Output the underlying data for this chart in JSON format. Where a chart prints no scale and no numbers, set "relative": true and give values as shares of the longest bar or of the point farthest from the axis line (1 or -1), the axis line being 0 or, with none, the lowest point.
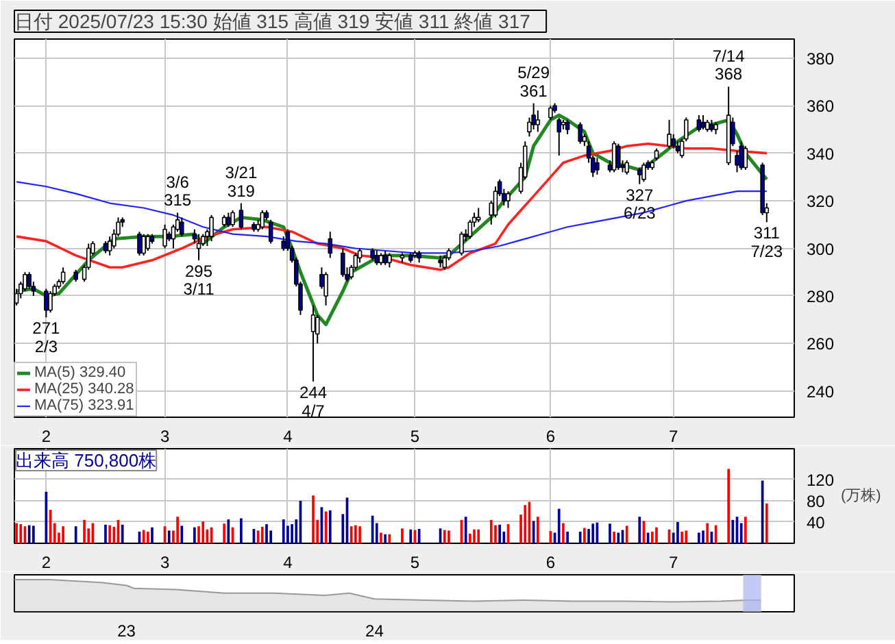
{
  "chart_data": [
    {
      "type": "candlestick",
      "title": "日付 2025/07/23 15:30 始値 315  高値 319  安値 311  終値 317",
      "x": [
        "2025-01-27",
        "2025-01-28",
        "2025-01-29",
        "2025-01-30",
        "2025-01-31",
        "2025-02-03",
        "2025-02-04",
        "2025-02-05",
        "2025-02-06",
        "2025-02-07",
        "2025-02-10",
        "2025-02-12",
        "2025-02-13",
        "2025-02-14",
        "2025-02-17",
        "2025-02-18",
        "2025-02-19",
        "2025-02-20",
        "2025-02-21",
        "2025-02-25",
        "2025-02-26",
        "2025-02-27",
        "2025-02-28",
        "2025-03-03",
        "2025-03-04",
        "2025-03-05",
        "2025-03-06",
        "2025-03-07",
        "2025-03-10",
        "2025-03-11",
        "2025-03-12",
        "2025-03-13",
        "2025-03-14",
        "2025-03-17",
        "2025-03-18",
        "2025-03-19",
        "2025-03-21",
        "2025-03-24",
        "2025-03-25",
        "2025-03-26",
        "2025-03-27",
        "2025-03-28",
        "2025-03-31",
        "2025-04-01",
        "2025-04-02",
        "2025-04-03",
        "2025-04-04",
        "2025-04-07",
        "2025-04-08",
        "2025-04-09",
        "2025-04-10",
        "2025-04-11",
        "2025-04-14",
        "2025-04-15",
        "2025-04-16",
        "2025-04-17",
        "2025-04-18",
        "2025-04-21",
        "2025-04-22",
        "2025-04-23",
        "2025-04-24",
        "2025-04-25",
        "2025-04-28",
        "2025-04-30",
        "2025-05-01",
        "2025-05-02",
        "2025-05-07",
        "2025-05-08",
        "2025-05-09",
        "2025-05-12",
        "2025-05-13",
        "2025-05-14",
        "2025-05-15",
        "2025-05-16",
        "2025-05-19",
        "2025-05-20",
        "2025-05-21",
        "2025-05-22",
        "2025-05-23",
        "2025-05-26",
        "2025-05-27",
        "2025-05-28",
        "2025-05-29",
        "2025-05-30",
        "2025-06-02",
        "2025-06-03",
        "2025-06-04",
        "2025-06-05",
        "2025-06-06",
        "2025-06-09",
        "2025-06-10",
        "2025-06-11",
        "2025-06-12",
        "2025-06-13",
        "2025-06-16",
        "2025-06-17",
        "2025-06-18",
        "2025-06-19",
        "2025-06-20",
        "2025-06-23",
        "2025-06-24",
        "2025-06-25",
        "2025-06-26",
        "2025-06-27",
        "2025-06-30",
        "2025-07-01",
        "2025-07-02",
        "2025-07-03",
        "2025-07-04",
        "2025-07-07",
        "2025-07-08",
        "2025-07-09",
        "2025-07-10",
        "2025-07-11",
        "2025-07-14",
        "2025-07-15",
        "2025-07-16",
        "2025-07-17",
        "2025-07-18",
        "2025-07-22",
        "2025-07-23"
      ],
      "ohlc": [
        [
          277,
          283,
          276,
          281
        ],
        [
          281,
          286,
          279,
          285
        ],
        [
          283,
          290,
          282,
          289
        ],
        [
          289,
          290,
          283,
          284
        ],
        [
          284,
          286,
          280,
          282
        ],
        [
          282,
          283,
          271,
          274
        ],
        [
          274,
          282,
          273,
          281
        ],
        [
          281,
          285,
          280,
          284
        ],
        [
          284,
          287,
          283,
          286
        ],
        [
          286,
          292,
          285,
          290
        ],
        [
          290,
          291,
          286,
          287
        ],
        [
          287,
          293,
          286,
          292
        ],
        [
          292,
          302,
          291,
          300
        ],
        [
          298,
          303,
          297,
          302
        ],
        [
          302,
          303,
          298,
          299
        ],
        [
          299,
          305,
          297,
          303
        ],
        [
          301,
          308,
          300,
          306
        ],
        [
          306,
          313,
          305,
          311
        ],
        [
          312,
          313,
          309,
          311
        ],
        [
          306,
          307,
          297,
          298
        ],
        [
          298,
          306,
          297,
          305
        ],
        [
          300,
          306,
          299,
          305
        ],
        [
          305,
          306,
          302,
          303
        ],
        [
          301,
          310,
          300,
          308
        ],
        [
          306,
          307,
          303,
          304
        ],
        [
          304,
          310,
          300,
          309
        ],
        [
          308,
          315,
          307,
          312
        ],
        [
          311,
          313,
          305,
          306
        ],
        [
          306,
          308,
          302,
          304
        ],
        [
          300,
          306,
          295,
          302
        ],
        [
          302,
          306,
          301,
          305
        ],
        [
          305,
          308,
          301,
          307
        ],
        [
          305,
          314,
          303,
          313
        ],
        [
          310,
          314,
          309,
          313
        ],
        [
          313,
          315,
          309,
          310
        ],
        [
          310,
          316,
          309,
          315
        ],
        [
          316,
          319,
          308,
          309
        ],
        [
          310,
          311,
          307,
          308
        ],
        [
          308,
          312,
          307,
          310
        ],
        [
          309,
          316,
          308,
          315
        ],
        [
          315,
          316,
          312,
          313
        ],
        [
          311,
          312,
          302,
          303
        ],
        [
          303,
          305,
          299,
          300
        ],
        [
          307,
          308,
          299,
          300
        ],
        [
          300,
          301,
          294,
          295
        ],
        [
          295,
          296,
          284,
          285
        ],
        [
          285,
          286,
          272,
          274
        ],
        [
          265,
          276,
          244,
          272
        ],
        [
          264,
          272,
          260,
          271
        ],
        [
          289,
          292,
          283,
          284
        ],
        [
          280,
          290,
          276,
          289
        ],
        [
          304,
          307,
          296,
          298
        ],
        [
          298,
          300,
          288,
          289
        ],
        [
          289,
          292,
          286,
          287
        ],
        [
          288,
          293,
          287,
          292
        ],
        [
          292,
          298,
          291,
          297
        ],
        [
          296,
          300,
          294,
          299
        ],
        [
          299,
          300,
          295,
          296
        ],
        [
          297,
          299,
          293,
          294
        ],
        [
          294,
          298,
          293,
          297
        ],
        [
          297,
          299,
          293,
          294
        ],
        [
          294,
          298,
          292,
          297
        ],
        [
          296,
          298,
          294,
          297
        ],
        [
          297,
          298,
          294,
          295
        ],
        [
          297,
          299,
          296,
          298
        ],
        [
          298,
          299,
          294,
          296
        ],
        [
          295,
          297,
          292,
          294
        ],
        [
          292,
          297,
          291,
          296
        ],
        [
          296,
          300,
          295,
          299
        ],
        [
          298,
          307,
          297,
          306
        ],
        [
          306,
          308,
          303,
          305
        ],
        [
          305,
          312,
          304,
          311
        ],
        [
          311,
          315,
          309,
          313
        ],
        [
          312,
          317,
          311,
          313
        ],
        [
          314,
          320,
          310,
          319
        ],
        [
          314,
          326,
          313,
          324
        ],
        [
          328,
          329,
          322,
          323
        ],
        [
          323,
          325,
          318,
          320
        ],
        [
          320,
          324,
          317,
          323
        ],
        [
          324,
          336,
          323,
          334
        ],
        [
          330,
          345,
          329,
          343
        ],
        [
          349,
          355,
          347,
          353
        ],
        [
          356,
          361,
          350,
          352
        ],
        [
          352,
          358,
          349,
          354
        ],
        [
          355,
          360,
          354,
          359
        ],
        [
          360,
          361,
          357,
          358
        ],
        [
          354,
          355,
          339,
          349
        ],
        [
          352,
          354,
          350,
          353
        ],
        [
          353,
          354,
          348,
          350
        ],
        [
          352,
          353,
          344,
          345
        ],
        [
          345,
          348,
          343,
          347
        ],
        [
          343,
          345,
          336,
          338
        ],
        [
          338,
          339,
          330,
          332
        ],
        [
          336,
          338,
          331,
          333
        ],
        [
          335,
          337,
          332,
          333
        ],
        [
          333,
          345,
          332,
          344
        ],
        [
          343,
          344,
          333,
          334
        ],
        [
          335,
          337,
          332,
          334
        ],
        [
          332,
          337,
          331,
          336
        ],
        [
          333,
          334,
          327,
          331
        ],
        [
          329,
          336,
          328,
          335
        ],
        [
          336,
          337,
          333,
          334
        ],
        [
          334,
          337,
          333,
          336
        ],
        [
          338,
          342,
          337,
          341
        ],
        [
          343,
          354,
          342,
          348
        ],
        [
          346,
          348,
          342,
          343
        ],
        [
          343,
          345,
          340,
          341
        ],
        [
          339,
          346,
          338,
          345
        ],
        [
          346,
          355,
          345,
          354
        ],
        [
          354,
          356,
          349,
          350
        ],
        [
          353,
          356,
          350,
          351
        ],
        [
          350,
          354,
          349,
          353
        ],
        [
          352,
          354,
          349,
          350
        ],
        [
          350,
          353,
          348,
          352
        ],
        [
          336,
          368,
          335,
          356
        ],
        [
          353,
          355,
          343,
          344
        ],
        [
          339,
          341,
          332,
          335
        ],
        [
          343,
          345,
          333,
          334
        ],
        [
          334,
          343,
          333,
          342
        ],
        [
          335,
          336,
          314,
          315
        ],
        [
          315,
          319,
          311,
          317
        ]
      ],
      "colors": [
        "#ffffff",
        "#ffffff",
        "#ffffff",
        "#000099",
        "#000099",
        "#000099",
        "#ffffff",
        "#ffffff",
        "#ffffff",
        "#ffffff",
        "#000099",
        "#ffffff",
        "#ffffff",
        "#ffffff",
        "#000099",
        "#ffffff",
        "#ffffff",
        "#ffffff",
        "#000099",
        "#000099",
        "#ffffff",
        "#ffffff",
        "#000099",
        "#ffffff",
        "#000099",
        "#ffffff",
        "#ffffff",
        "#000099",
        "#000099",
        "#ffffff",
        "#ffffff",
        "#ffffff",
        "#ffffff",
        "#ffffff",
        "#000099",
        "#ffffff",
        "#000099",
        "#000099",
        "#ffffff",
        "#ffffff",
        "#000099",
        "#000099",
        "#000099",
        "#000099",
        "#000099",
        "#000099",
        "#000099",
        "#ffffff",
        "#ffffff",
        "#000099",
        "#ffffff",
        "#000099",
        "#000099",
        "#000099",
        "#ffffff",
        "#ffffff",
        "#ffffff",
        "#000099",
        "#000099",
        "#ffffff",
        "#000099",
        "#ffffff",
        "#ffffff",
        "#000099",
        "#ffffff",
        "#000099",
        "#000099",
        "#ffffff",
        "#ffffff",
        "#ffffff",
        "#000099",
        "#ffffff",
        "#ffffff",
        "#ffffff",
        "#ffffff",
        "#ffffff",
        "#000099",
        "#000099",
        "#ffffff",
        "#ffffff",
        "#ffffff",
        "#ffffff",
        "#000099",
        "#ffffff",
        "#ffffff",
        "#000099",
        "#000099",
        "#ffffff",
        "#000099",
        "#000099",
        "#ffffff",
        "#000099",
        "#000099",
        "#000099",
        "#000099",
        "#ffffff",
        "#000099",
        "#000099",
        "#ffffff",
        "#000099",
        "#ffffff",
        "#000099",
        "#ffffff",
        "#ffffff",
        "#ffffff",
        "#000099",
        "#000099",
        "#ffffff",
        "#ffffff",
        "#000099",
        "#000099",
        "#ffffff",
        "#000099",
        "#ffffff",
        "#ffffff",
        "#000099",
        "#000099",
        "#000099",
        "#ffffff",
        "#000099",
        "#ffffff"
      ],
      "series": [
        {
          "type": "line",
          "name": "MA(5) 329.40",
          "color": "#228822",
          "x": [
            "2025-01-27",
            "2025-01-31",
            "2025-02-03",
            "2025-02-06",
            "2025-02-13",
            "2025-02-19",
            "2025-02-26",
            "2025-03-04",
            "2025-03-10",
            "2025-03-12",
            "2025-03-17",
            "2025-03-21",
            "2025-03-26",
            "2025-03-31",
            "2025-04-02",
            "2025-04-04",
            "2025-04-08",
            "2025-04-10",
            "2025-04-14",
            "2025-04-16",
            "2025-04-21",
            "2025-04-24",
            "2025-04-30",
            "2025-05-07",
            "2025-05-09",
            "2025-05-14",
            "2025-05-19",
            "2025-05-22",
            "2025-05-27",
            "2025-05-29",
            "2025-06-02",
            "2025-06-04",
            "2025-06-06",
            "2025-06-10",
            "2025-06-12",
            "2025-06-16",
            "2025-06-19",
            "2025-06-23",
            "2025-06-25",
            "2025-06-30",
            "2025-07-02",
            "2025-07-07",
            "2025-07-10",
            "2025-07-14",
            "2025-07-16",
            "2025-07-18",
            "2025-07-23"
          ],
          "values": [
            282,
            283,
            280,
            281,
            295,
            304,
            305,
            305,
            306,
            302,
            309,
            313,
            312,
            309,
            300,
            290,
            272,
            268,
            282,
            290,
            295,
            297,
            297,
            296,
            297,
            305,
            313,
            320,
            330,
            343,
            354,
            356,
            354,
            349,
            340,
            336,
            335,
            333,
            335,
            342,
            345,
            351,
            352,
            354,
            348,
            340,
            329
          ]
        },
        {
          "type": "line",
          "name": "MA(25) 340.28",
          "color": "#ff2222",
          "x": [
            "2025-01-27",
            "2025-02-03",
            "2025-02-10",
            "2025-02-18",
            "2025-02-21",
            "2025-02-28",
            "2025-03-07",
            "2025-03-13",
            "2025-03-19",
            "2025-03-27",
            "2025-04-02",
            "2025-04-08",
            "2025-04-14",
            "2025-04-18",
            "2025-04-24",
            "2025-04-30",
            "2025-05-07",
            "2025-05-09",
            "2025-05-14",
            "2025-05-20",
            "2025-05-23",
            "2025-05-28",
            "2025-06-02",
            "2025-06-05",
            "2025-06-10",
            "2025-06-16",
            "2025-06-20",
            "2025-06-25",
            "2025-06-30",
            "2025-07-04",
            "2025-07-10",
            "2025-07-16",
            "2025-07-23"
          ],
          "values": [
            305,
            303,
            297,
            292,
            292,
            295,
            300,
            305,
            308,
            309,
            307,
            302,
            300,
            297,
            296,
            293,
            291,
            292,
            298,
            302,
            310,
            320,
            330,
            336,
            339,
            341,
            343,
            344,
            343,
            342,
            342,
            341,
            340
          ]
        },
        {
          "type": "line",
          "name": "MA(75) 323.91",
          "color": "#2222ff",
          "x": [
            "2025-01-27",
            "2025-02-03",
            "2025-02-10",
            "2025-02-18",
            "2025-02-26",
            "2025-03-05",
            "2025-03-12",
            "2025-03-19",
            "2025-03-27",
            "2025-04-03",
            "2025-04-10",
            "2025-04-17",
            "2025-04-24",
            "2025-05-01",
            "2025-05-09",
            "2025-05-15",
            "2025-05-21",
            "2025-05-27",
            "2025-06-02",
            "2025-06-06",
            "2025-06-12",
            "2025-06-18",
            "2025-06-24",
            "2025-06-30",
            "2025-07-04",
            "2025-07-10",
            "2025-07-16",
            "2025-07-23"
          ],
          "values": [
            328,
            326,
            323,
            319,
            317,
            314,
            309,
            306,
            305,
            303,
            302,
            300,
            299,
            298,
            298,
            299,
            301,
            304,
            307,
            309,
            311,
            313,
            315,
            318,
            320,
            322,
            324,
            324
          ]
        }
      ],
      "annotations": [
        {
          "text": "271\n2/3",
          "x": "2025-02-03",
          "y": 271
        },
        {
          "text": "3/6\n315",
          "x": "2025-03-06",
          "y": 315
        },
        {
          "text": "295\n3/11",
          "x": "2025-03-11",
          "y": 295
        },
        {
          "text": "3/21\n319",
          "x": "2025-03-21",
          "y": 319
        },
        {
          "text": "244\n4/7",
          "x": "2025-04-07",
          "y": 244
        },
        {
          "text": "5/29\n361",
          "x": "2025-05-29",
          "y": 361
        },
        {
          "text": "327\n6/23",
          "x": "2025-06-23",
          "y": 327
        },
        {
          "text": "7/14\n368",
          "x": "2025-07-14",
          "y": 368
        },
        {
          "text": "311\n7/23",
          "x": "2025-07-23",
          "y": 311
        }
      ],
      "xlim": [
        "2025-01-27",
        "2025-07-29"
      ],
      "ylim": [
        229,
        388
      ],
      "xticks": [
        {
          "value": "2025-02-03",
          "label": "2"
        },
        {
          "value": "2025-03-03",
          "label": "3"
        },
        {
          "value": "2025-04-01",
          "label": "4"
        },
        {
          "value": "2025-05-01",
          "label": "5"
        },
        {
          "value": "2025-06-02",
          "label": "6"
        },
        {
          "value": "2025-07-01",
          "label": "7"
        }
      ],
      "yticks": [
        240,
        260,
        280,
        300,
        320,
        340,
        360,
        380
      ],
      "grid": true,
      "legend": "bottom left"
    },
    {
      "type": "bar",
      "title": "出来高 750,800株",
      "ylabel": "(万株)",
      "x": [
        "2025-01-27",
        "2025-01-28",
        "2025-01-29",
        "2025-01-30",
        "2025-01-31",
        "2025-02-03",
        "2025-02-04",
        "2025-02-05",
        "2025-02-06",
        "2025-02-07",
        "2025-02-10",
        "2025-02-12",
        "2025-02-13",
        "2025-02-14",
        "2025-02-17",
        "2025-02-18",
        "2025-02-19",
        "2025-02-20",
        "2025-02-21",
        "2025-02-25",
        "2025-02-26",
        "2025-02-27",
        "2025-02-28",
        "2025-03-03",
        "2025-03-04",
        "2025-03-05",
        "2025-03-06",
        "2025-03-07",
        "2025-03-10",
        "2025-03-11",
        "2025-03-12",
        "2025-03-13",
        "2025-03-14",
        "2025-03-17",
        "2025-03-18",
        "2025-03-19",
        "2025-03-21",
        "2025-03-24",
        "2025-03-25",
        "2025-03-26",
        "2025-03-27",
        "2025-03-28",
        "2025-03-31",
        "2025-04-01",
        "2025-04-02",
        "2025-04-03",
        "2025-04-04",
        "2025-04-07",
        "2025-04-08",
        "2025-04-09",
        "2025-04-10",
        "2025-04-11",
        "2025-04-14",
        "2025-04-15",
        "2025-04-16",
        "2025-04-17",
        "2025-04-18",
        "2025-04-21",
        "2025-04-22",
        "2025-04-23",
        "2025-04-24",
        "2025-04-25",
        "2025-04-28",
        "2025-04-30",
        "2025-05-01",
        "2025-05-02",
        "2025-05-07",
        "2025-05-08",
        "2025-05-09",
        "2025-05-12",
        "2025-05-13",
        "2025-05-14",
        "2025-05-15",
        "2025-05-16",
        "2025-05-19",
        "2025-05-20",
        "2025-05-21",
        "2025-05-22",
        "2025-05-23",
        "2025-05-26",
        "2025-05-27",
        "2025-05-28",
        "2025-05-29",
        "2025-05-30",
        "2025-06-02",
        "2025-06-03",
        "2025-06-04",
        "2025-06-05",
        "2025-06-06",
        "2025-06-09",
        "2025-06-10",
        "2025-06-11",
        "2025-06-12",
        "2025-06-13",
        "2025-06-16",
        "2025-06-17",
        "2025-06-18",
        "2025-06-19",
        "2025-06-20",
        "2025-06-23",
        "2025-06-24",
        "2025-06-25",
        "2025-06-26",
        "2025-06-27",
        "2025-06-30",
        "2025-07-01",
        "2025-07-02",
        "2025-07-03",
        "2025-07-04",
        "2025-07-07",
        "2025-07-08",
        "2025-07-09",
        "2025-07-10",
        "2025-07-11",
        "2025-07-14",
        "2025-07-15",
        "2025-07-16",
        "2025-07-17",
        "2025-07-18",
        "2025-07-22",
        "2025-07-23"
      ],
      "values": [
        38,
        36,
        32,
        34,
        33,
        97,
        63,
        38,
        20,
        32,
        32,
        44,
        28,
        38,
        35,
        34,
        31,
        44,
        35,
        22,
        25,
        22,
        30,
        32,
        24,
        24,
        50,
        33,
        30,
        32,
        41,
        26,
        30,
        37,
        45,
        30,
        47,
        27,
        24,
        31,
        36,
        24,
        45,
        33,
        36,
        45,
        80,
        90,
        44,
        68,
        60,
        62,
        55,
        86,
        32,
        34,
        32,
        52,
        38,
        20,
        17,
        17,
        28,
        26,
        25,
        27,
        28,
        25,
        24,
        44,
        50,
        18,
        26,
        26,
        44,
        34,
        35,
        22,
        36,
        54,
        72,
        78,
        42,
        50,
        23,
        20,
        65,
        38,
        22,
        22,
        29,
        27,
        37,
        39,
        37,
        22,
        20,
        25,
        33,
        50,
        42,
        20,
        22,
        30,
        26,
        20,
        40,
        22,
        24,
        20,
        24,
        38,
        22,
        34,
        140,
        44,
        50,
        38,
        50,
        118,
        75
      ],
      "colors": [
        "#ff0000",
        "#ff0000",
        "#ff0000",
        "#000099",
        "#000099",
        "#000099",
        "#ff0000",
        "#ff0000",
        "#ff0000",
        "#ff0000",
        "#000099",
        "#ff0000",
        "#ff0000",
        "#ff0000",
        "#000099",
        "#ff0000",
        "#ff0000",
        "#ff0000",
        "#000099",
        "#000099",
        "#ff0000",
        "#ff0000",
        "#000099",
        "#ff0000",
        "#000099",
        "#ff0000",
        "#ff0000",
        "#000099",
        "#000099",
        "#ff0000",
        "#ff0000",
        "#ff0000",
        "#ff0000",
        "#ff0000",
        "#000099",
        "#ff0000",
        "#000099",
        "#000099",
        "#ff0000",
        "#ff0000",
        "#000099",
        "#000099",
        "#000099",
        "#000099",
        "#000099",
        "#000099",
        "#000099",
        "#ff0000",
        "#ff0000",
        "#000099",
        "#ff0000",
        "#000099",
        "#000099",
        "#000099",
        "#ff0000",
        "#ff0000",
        "#ff0000",
        "#000099",
        "#000099",
        "#ff0000",
        "#000099",
        "#ff0000",
        "#ff0000",
        "#000099",
        "#ff0000",
        "#000099",
        "#000099",
        "#ff0000",
        "#ff0000",
        "#ff0000",
        "#000099",
        "#ff0000",
        "#ff0000",
        "#ff0000",
        "#ff0000",
        "#ff0000",
        "#000099",
        "#000099",
        "#ff0000",
        "#ff0000",
        "#ff0000",
        "#ff0000",
        "#000099",
        "#ff0000",
        "#ff0000",
        "#000099",
        "#000099",
        "#ff0000",
        "#000099",
        "#000099",
        "#ff0000",
        "#000099",
        "#000099",
        "#000099",
        "#000099",
        "#ff0000",
        "#000099",
        "#000099",
        "#ff0000",
        "#000099",
        "#ff0000",
        "#000099",
        "#ff0000",
        "#ff0000",
        "#ff0000",
        "#000099",
        "#000099",
        "#ff0000",
        "#ff0000",
        "#000099",
        "#000099",
        "#ff0000",
        "#000099",
        "#ff0000",
        "#ff0000",
        "#000099",
        "#000099",
        "#000099",
        "#ff0000",
        "#000099",
        "#ff0000"
      ],
      "xlim": [
        "2025-01-27",
        "2025-07-29"
      ],
      "ylim": [
        0,
        178
      ],
      "xticks": [
        {
          "value": "2025-02-03",
          "label": "2"
        },
        {
          "value": "2025-03-03",
          "label": "3"
        },
        {
          "value": "2025-04-01",
          "label": "4"
        },
        {
          "value": "2025-05-01",
          "label": "5"
        },
        {
          "value": "2025-06-02",
          "label": "6"
        },
        {
          "value": "2025-07-01",
          "label": "7"
        }
      ],
      "yticks": [
        40,
        80,
        120
      ],
      "grid": true
    },
    {
      "type": "area",
      "relative": true,
      "tick_labels": "x",
      "color": "#999999",
      "x": [
        "2022-07-20",
        "2022-09-10",
        "2022-11-25",
        "2023-01-01",
        "2023-01-12",
        "2023-03-15",
        "2023-05-25",
        "2023-08-07",
        "2023-10-20",
        "2023-11-25",
        "2024-01-01",
        "2024-03-15",
        "2024-05-25",
        "2024-08-07",
        "2024-10-20",
        "2025-01-01",
        "2025-03-15",
        "2025-05-25",
        "2025-07-01",
        "2025-07-23"
      ],
      "values": [
        1,
        1,
        0.91,
        0.82,
        0.73,
        0.69,
        0.58,
        0.58,
        0.51,
        0.58,
        0.4,
        0.36,
        0.33,
        0.36,
        0.33,
        0.33,
        0.31,
        0.33,
        0.36,
        0.36
      ],
      "xlim": [
        "2022-07-20",
        "2025-09-10"
      ],
      "xticks": [
        {
          "value": "2023-01-01",
          "label": "23"
        },
        {
          "value": "2024-01-01",
          "label": "24"
        }
      ],
      "bands": [
        {
          "axis": "x",
          "from": "2025-06-27",
          "to": "2025-07-23",
          "color": "#aab4f0"
        }
      ]
    }
  ]
}
